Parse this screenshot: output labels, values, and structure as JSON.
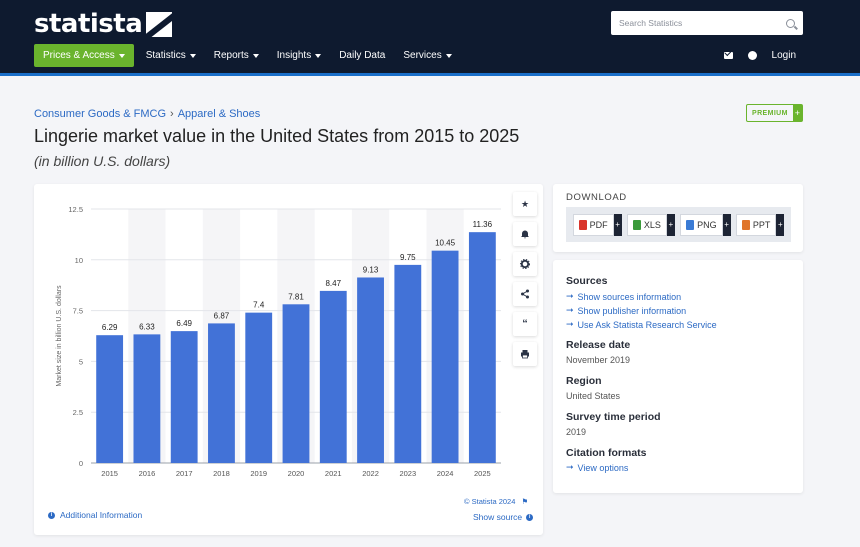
{
  "header": {
    "logo": "statista",
    "search_placeholder": "Search Statistics",
    "nav": [
      {
        "label": "Prices & Access",
        "caret": true
      },
      {
        "label": "Statistics",
        "caret": true
      },
      {
        "label": "Reports",
        "caret": true
      },
      {
        "label": "Insights",
        "caret": true
      },
      {
        "label": "Daily Data",
        "caret": false
      },
      {
        "label": "Services",
        "caret": true
      }
    ],
    "login": "Login",
    "icons": [
      "mail-icon",
      "user-icon"
    ]
  },
  "breadcrumb": {
    "items": [
      "Consumer Goods & FMCG",
      "Apparel & Shoes"
    ],
    "separator": "›"
  },
  "premium": {
    "label": "PREMIUM",
    "plus": "+"
  },
  "title": "Lingerie market value in the United States from 2015 to 2025",
  "subtitle": "(in billion U.S. dollars)",
  "chart_data": {
    "type": "bar",
    "categories": [
      "2015",
      "2016",
      "2017",
      "2018",
      "2019",
      "2020",
      "2021",
      "2022",
      "2023",
      "2024",
      "2025"
    ],
    "values": [
      6.29,
      6.33,
      6.49,
      6.87,
      7.4,
      7.81,
      8.47,
      9.13,
      9.75,
      10.45,
      11.36
    ],
    "value_labels": [
      "6.29",
      "6.33",
      "6.49",
      "6.87",
      "7.4",
      "7.81",
      "8.47",
      "9.13",
      "9.75",
      "10.45",
      "11.36"
    ],
    "ylabel": "Market size in billion U.S. dollars",
    "xlabel": "",
    "ylim": [
      0,
      12.5
    ],
    "yticks": [
      "0",
      "2.5",
      "5",
      "7.5",
      "10",
      "12.5"
    ],
    "bar_color": "#4272d7",
    "alt_band_color": "#f5f5f7",
    "grid": true
  },
  "chart_footer": {
    "copyright": "© Statista 2024",
    "additional_info": "Additional Information",
    "show_source": "Show source"
  },
  "tools": [
    "star-icon",
    "bell-icon",
    "gear-icon",
    "share-icon",
    "quote-icon",
    "print-icon"
  ],
  "download": {
    "heading": "DOWNLOAD",
    "buttons": [
      {
        "label": "PDF",
        "color": "#d9342b"
      },
      {
        "label": "XLS",
        "color": "#3a9a3a"
      },
      {
        "label": "PNG",
        "color": "#3a7bd5"
      },
      {
        "label": "PPT",
        "color": "#e0752a"
      }
    ],
    "plus": "+"
  },
  "sources": {
    "heading": "Sources",
    "links": [
      "Show sources information",
      "Show publisher information",
      "Use Ask Statista Research Service"
    ],
    "release_date_label": "Release date",
    "release_date": "November 2019",
    "region_label": "Region",
    "region": "United States",
    "survey_label": "Survey time period",
    "survey": "2019",
    "citation_label": "Citation formats",
    "citation_link": "View options"
  }
}
